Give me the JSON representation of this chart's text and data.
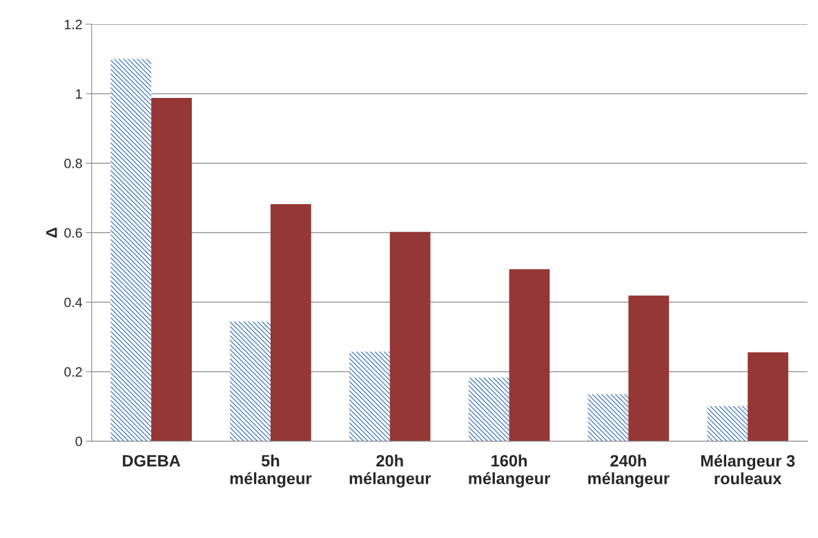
{
  "chart_data": {
    "type": "bar",
    "ylabel": "Δ",
    "categories": [
      "DGEBA",
      "5h\nmélangeur",
      "20h\nmélangeur",
      "160h\nmélangeur",
      "240h\nmélangeur",
      "Mélangeur 3\nrouleaux"
    ],
    "series": [
      {
        "color": "#4f81bd",
        "values": [
          1.1,
          0.344,
          0.258,
          0.183,
          0.135,
          0.101
        ]
      },
      {
        "color": "#953735",
        "values": [
          0.988,
          0.682,
          0.602,
          0.495,
          0.419,
          0.256
        ]
      }
    ],
    "ylim": [
      0,
      1.2
    ],
    "yticks": [
      0,
      {
        "value": 0.2,
        "label": "0.2"
      },
      {
        "value": 0.4,
        "label": "0.4"
      },
      {
        "value": 0.6,
        "label": "0.6"
      },
      {
        "value": 0.8,
        "label": "0.8"
      },
      1,
      {
        "value": 1.2,
        "label": "1.2"
      }
    ],
    "grid": "y",
    "legend": false
  }
}
